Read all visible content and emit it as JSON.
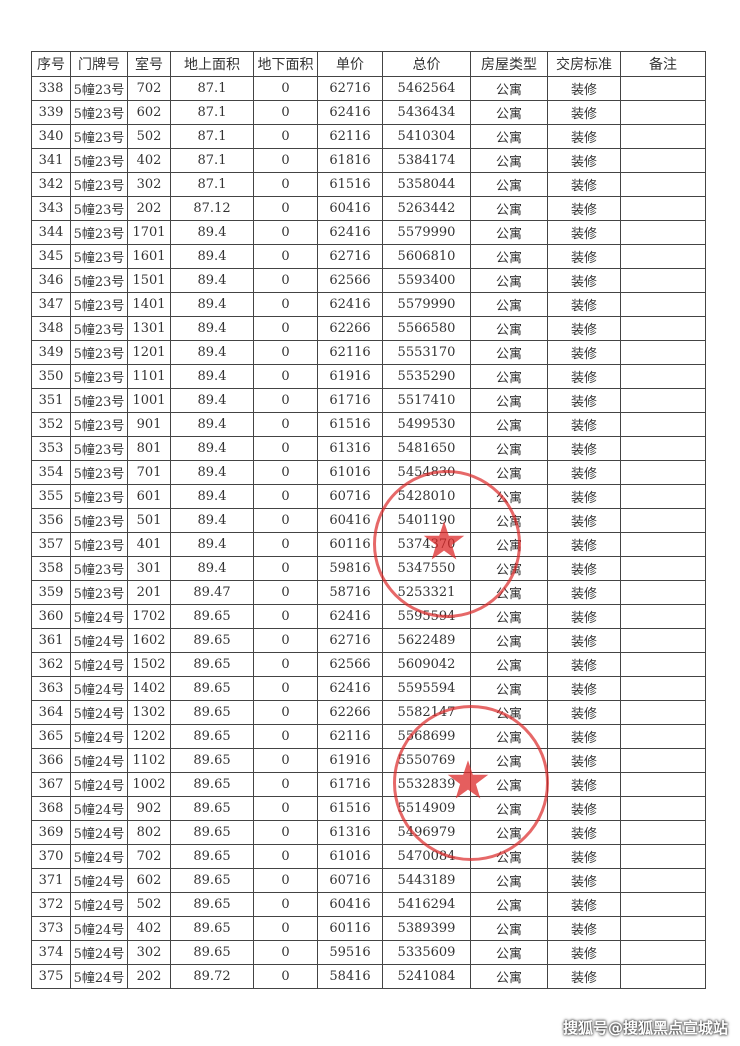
{
  "headers": [
    "序号",
    "门牌号",
    "室号",
    "地上面积",
    "地下面积",
    "单价",
    "总价",
    "房屋类型",
    "交房标准",
    "备注"
  ],
  "rows": [
    [
      "338",
      "5幢23号",
      "702",
      "87.1",
      "0",
      "62716",
      "5462564",
      "公寓",
      "装修",
      ""
    ],
    [
      "339",
      "5幢23号",
      "602",
      "87.1",
      "0",
      "62416",
      "5436434",
      "公寓",
      "装修",
      ""
    ],
    [
      "340",
      "5幢23号",
      "502",
      "87.1",
      "0",
      "62116",
      "5410304",
      "公寓",
      "装修",
      ""
    ],
    [
      "341",
      "5幢23号",
      "402",
      "87.1",
      "0",
      "61816",
      "5384174",
      "公寓",
      "装修",
      ""
    ],
    [
      "342",
      "5幢23号",
      "302",
      "87.1",
      "0",
      "61516",
      "5358044",
      "公寓",
      "装修",
      ""
    ],
    [
      "343",
      "5幢23号",
      "202",
      "87.12",
      "0",
      "60416",
      "5263442",
      "公寓",
      "装修",
      ""
    ],
    [
      "344",
      "5幢23号",
      "1701",
      "89.4",
      "0",
      "62416",
      "5579990",
      "公寓",
      "装修",
      ""
    ],
    [
      "345",
      "5幢23号",
      "1601",
      "89.4",
      "0",
      "62716",
      "5606810",
      "公寓",
      "装修",
      ""
    ],
    [
      "346",
      "5幢23号",
      "1501",
      "89.4",
      "0",
      "62566",
      "5593400",
      "公寓",
      "装修",
      ""
    ],
    [
      "347",
      "5幢23号",
      "1401",
      "89.4",
      "0",
      "62416",
      "5579990",
      "公寓",
      "装修",
      ""
    ],
    [
      "348",
      "5幢23号",
      "1301",
      "89.4",
      "0",
      "62266",
      "5566580",
      "公寓",
      "装修",
      ""
    ],
    [
      "349",
      "5幢23号",
      "1201",
      "89.4",
      "0",
      "62116",
      "5553170",
      "公寓",
      "装修",
      ""
    ],
    [
      "350",
      "5幢23号",
      "1101",
      "89.4",
      "0",
      "61916",
      "5535290",
      "公寓",
      "装修",
      ""
    ],
    [
      "351",
      "5幢23号",
      "1001",
      "89.4",
      "0",
      "61716",
      "5517410",
      "公寓",
      "装修",
      ""
    ],
    [
      "352",
      "5幢23号",
      "901",
      "89.4",
      "0",
      "61516",
      "5499530",
      "公寓",
      "装修",
      ""
    ],
    [
      "353",
      "5幢23号",
      "801",
      "89.4",
      "0",
      "61316",
      "5481650",
      "公寓",
      "装修",
      ""
    ],
    [
      "354",
      "5幢23号",
      "701",
      "89.4",
      "0",
      "61016",
      "5454830",
      "公寓",
      "装修",
      ""
    ],
    [
      "355",
      "5幢23号",
      "601",
      "89.4",
      "0",
      "60716",
      "5428010",
      "公寓",
      "装修",
      ""
    ],
    [
      "356",
      "5幢23号",
      "501",
      "89.4",
      "0",
      "60416",
      "5401190",
      "公寓",
      "装修",
      ""
    ],
    [
      "357",
      "5幢23号",
      "401",
      "89.4",
      "0",
      "60116",
      "5374370",
      "公寓",
      "装修",
      ""
    ],
    [
      "358",
      "5幢23号",
      "301",
      "89.4",
      "0",
      "59816",
      "5347550",
      "公寓",
      "装修",
      ""
    ],
    [
      "359",
      "5幢23号",
      "201",
      "89.47",
      "0",
      "58716",
      "5253321",
      "公寓",
      "装修",
      ""
    ],
    [
      "360",
      "5幢24号",
      "1702",
      "89.65",
      "0",
      "62416",
      "5595594",
      "公寓",
      "装修",
      ""
    ],
    [
      "361",
      "5幢24号",
      "1602",
      "89.65",
      "0",
      "62716",
      "5622489",
      "公寓",
      "装修",
      ""
    ],
    [
      "362",
      "5幢24号",
      "1502",
      "89.65",
      "0",
      "62566",
      "5609042",
      "公寓",
      "装修",
      ""
    ],
    [
      "363",
      "5幢24号",
      "1402",
      "89.65",
      "0",
      "62416",
      "5595594",
      "公寓",
      "装修",
      ""
    ],
    [
      "364",
      "5幢24号",
      "1302",
      "89.65",
      "0",
      "62266",
      "5582147",
      "公寓",
      "装修",
      ""
    ],
    [
      "365",
      "5幢24号",
      "1202",
      "89.65",
      "0",
      "62116",
      "5568699",
      "公寓",
      "装修",
      ""
    ],
    [
      "366",
      "5幢24号",
      "1102",
      "89.65",
      "0",
      "61916",
      "5550769",
      "公寓",
      "装修",
      ""
    ],
    [
      "367",
      "5幢24号",
      "1002",
      "89.65",
      "0",
      "61716",
      "5532839",
      "公寓",
      "装修",
      ""
    ],
    [
      "368",
      "5幢24号",
      "902",
      "89.65",
      "0",
      "61516",
      "5514909",
      "公寓",
      "装修",
      ""
    ],
    [
      "369",
      "5幢24号",
      "802",
      "89.65",
      "0",
      "61316",
      "5496979",
      "公寓",
      "装修",
      ""
    ],
    [
      "370",
      "5幢24号",
      "702",
      "89.65",
      "0",
      "61016",
      "5470084",
      "公寓",
      "装修",
      ""
    ],
    [
      "371",
      "5幢24号",
      "602",
      "89.65",
      "0",
      "60716",
      "5443189",
      "公寓",
      "装修",
      ""
    ],
    [
      "372",
      "5幢24号",
      "502",
      "89.65",
      "0",
      "60416",
      "5416294",
      "公寓",
      "装修",
      ""
    ],
    [
      "373",
      "5幢24号",
      "402",
      "89.65",
      "0",
      "60116",
      "5389399",
      "公寓",
      "装修",
      ""
    ],
    [
      "374",
      "5幢24号",
      "302",
      "89.65",
      "0",
      "59516",
      "5335609",
      "公寓",
      "装修",
      ""
    ],
    [
      "375",
      "5幢24号",
      "202",
      "89.72",
      "0",
      "58416",
      "5241084",
      "公寓",
      "装修",
      ""
    ]
  ],
  "stamps": {
    "color": "#dc2828"
  },
  "watermark": "搜狐号@搜狐黑点宣城站"
}
